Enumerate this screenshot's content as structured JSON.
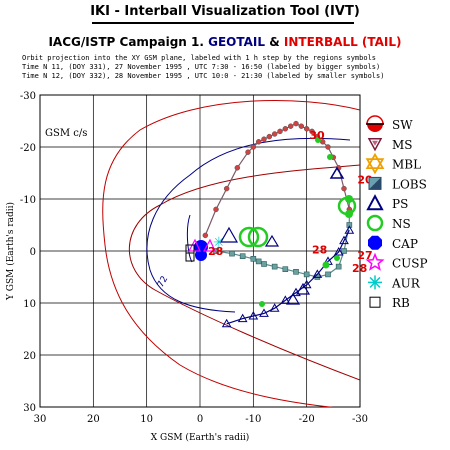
{
  "app_title": "IKI - Interball Visualization Tool (IVT)",
  "campaign": {
    "part1": "IACG/ISTP Campaign 1.",
    "part2": "GEOTAIL",
    "part3": "&",
    "part4": "INTERBALL (TAIL)"
  },
  "subtitle_lines": [
    "Orbit projection into the XY GSM plane, labeled with 1 h step by the regions symbols",
    "Time N 11, (DOY 331), 27 November 1995 , UTC 7:30 - 16:50 (labeled by bigger symbols)",
    "Time N 12, (DOY 332), 28 November 1995 , UTC 10:0 - 21:30 (labeled by smaller symbols)"
  ],
  "colors": {
    "geotail": "#00007f",
    "interball": "#e00000",
    "orbit": "#000080",
    "boundary": "#c00000",
    "ns": "#22cc22",
    "trail": "#5a8a8a"
  },
  "legend": [
    {
      "symbol": "sw-icon",
      "label": "SW"
    },
    {
      "symbol": "ms-icon",
      "label": "MS"
    },
    {
      "symbol": "mbl-icon",
      "label": "MBL"
    },
    {
      "symbol": "lobs-icon",
      "label": "LOBS"
    },
    {
      "symbol": "ps-icon",
      "label": "PS"
    },
    {
      "symbol": "ns-icon",
      "label": "NS"
    },
    {
      "symbol": "cap-icon",
      "label": "CAP"
    },
    {
      "symbol": "cusp-icon",
      "label": "CUSP"
    },
    {
      "symbol": "aur-icon",
      "label": "AUR"
    },
    {
      "symbol": "rb-icon",
      "label": "RB"
    }
  ],
  "chart_data": {
    "type": "line",
    "xlabel": "X GSM (Earth's radii)",
    "ylabel": "Y GSM (Earth's radii)",
    "xlim": [
      30,
      -30
    ],
    "ylim": [
      -30,
      30
    ],
    "x_ticks": [
      30,
      20,
      10,
      0,
      -10,
      -20,
      -30
    ],
    "y_ticks": [
      -30,
      -20,
      -10,
      0,
      10,
      20,
      30
    ],
    "x_tick_labels": [
      "30",
      "20",
      "10",
      "0",
      "-10",
      "-20",
      "-30"
    ],
    "y_tick_labels": [
      "-30",
      "-20",
      "-10",
      "0",
      "10",
      "20",
      "30"
    ],
    "grid": true,
    "frame_label": "GSM c/s",
    "series": [
      {
        "x": [
          -3,
          -6,
          -8,
          -10,
          -11,
          -12,
          -14,
          -16,
          -18,
          -20,
          -22,
          -24,
          -26,
          -27,
          -28,
          -28
        ],
        "y": [
          0,
          0.5,
          1,
          1.5,
          2,
          2.5,
          3,
          3.5,
          4,
          4.5,
          5,
          4.5,
          3,
          0,
          -5,
          -10
        ]
      },
      {
        "x": [
          -5,
          -8,
          -10,
          -12,
          -14,
          -16,
          -18,
          -20,
          -22,
          -24,
          -26,
          -27,
          -28
        ],
        "y": [
          14,
          13,
          12.5,
          12,
          11,
          9.5,
          8,
          6.5,
          4.5,
          2,
          0.2,
          -2,
          -4
        ]
      },
      {
        "x": [
          -28,
          -27,
          -26,
          -25,
          -24,
          -23,
          -22,
          -21,
          -20,
          -19,
          -18,
          -17,
          -16,
          -15,
          -14,
          -13,
          -12,
          -11,
          -10,
          -9,
          -7,
          -5,
          -3,
          -1
        ],
        "y": [
          -8,
          -12,
          -16,
          -18,
          -20,
          -21,
          -22,
          -23,
          -23.5,
          -24,
          -24.5,
          -24,
          -23.5,
          -23,
          -22.5,
          -22,
          -21.5,
          -21,
          -20,
          -19,
          -16,
          -12,
          -8,
          -3
        ]
      }
    ],
    "labels": [
      {
        "text": "30",
        "x": -20.5,
        "y": -21.5
      },
      {
        "text": "20",
        "x": -29.5,
        "y": -13
      },
      {
        "text": "28",
        "x": -21,
        "y": 0.5
      },
      {
        "text": "27",
        "x": -29.5,
        "y": 1.5
      },
      {
        "text": "28",
        "x": -28.5,
        "y": 4
      },
      {
        "text": "28",
        "x": -1.5,
        "y": 0.8
      }
    ]
  }
}
